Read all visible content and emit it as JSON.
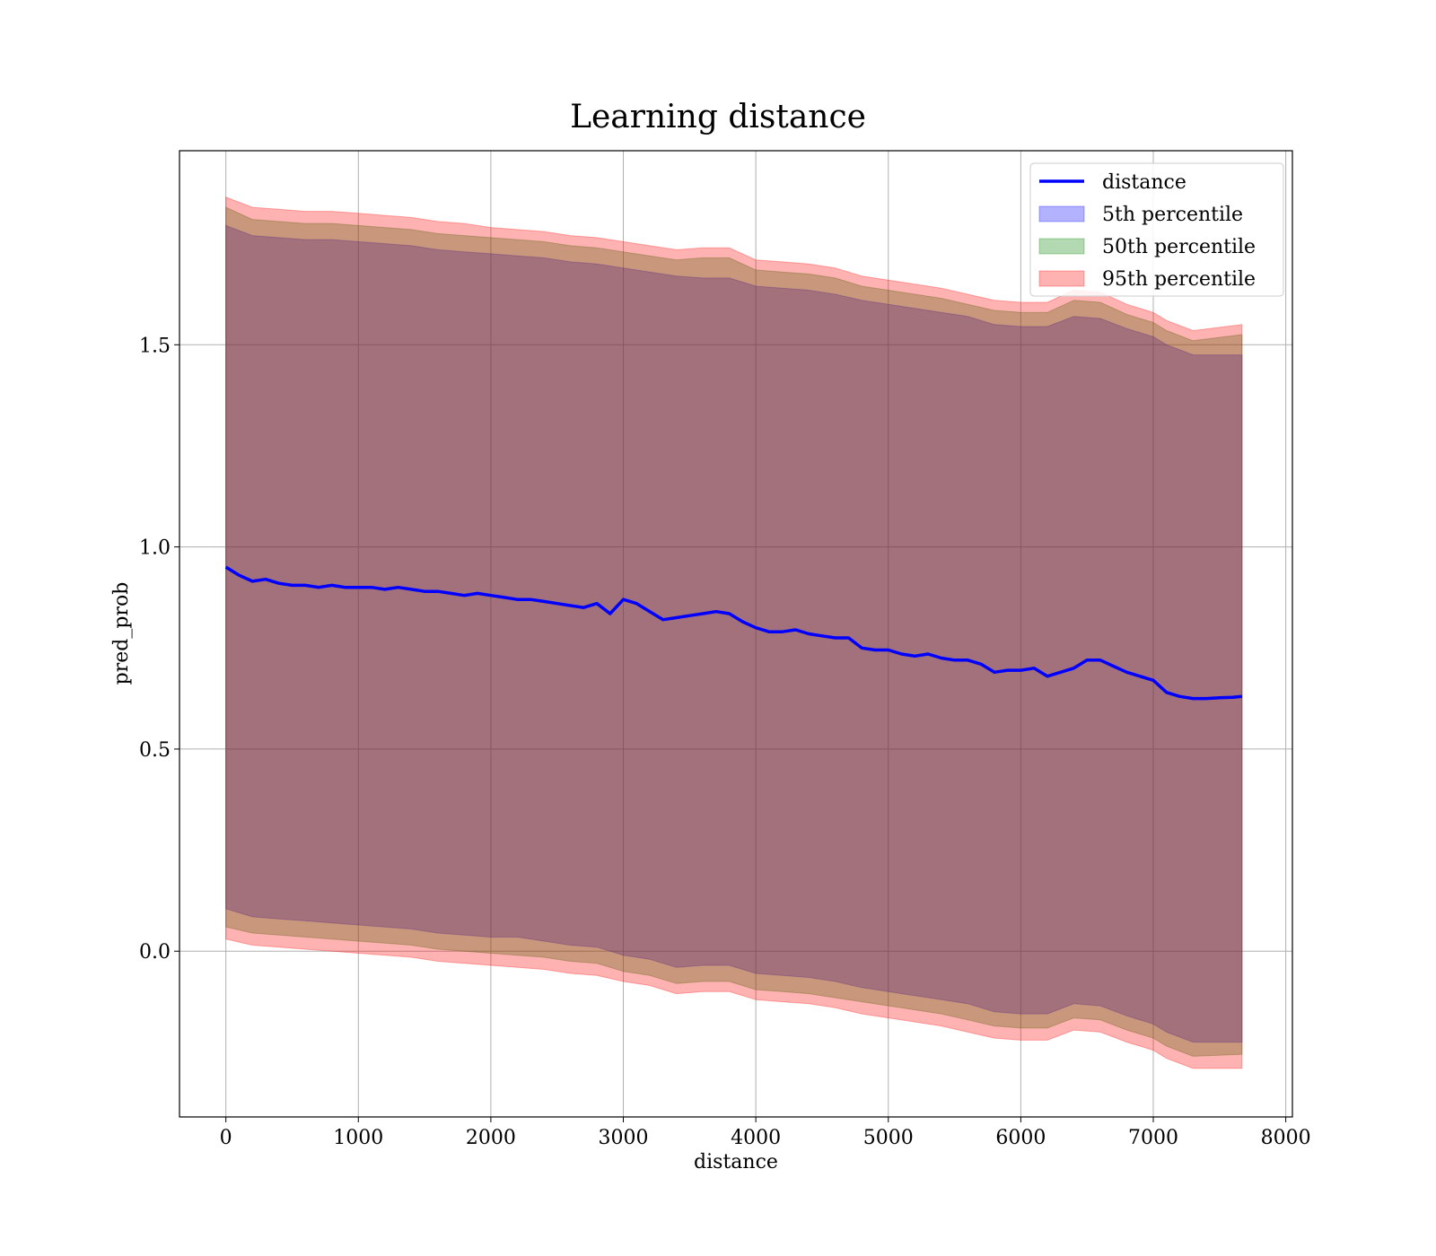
{
  "chart_data": {
    "type": "line",
    "title": "Learning distance",
    "xlabel": "distance",
    "ylabel": "pred_prob",
    "xlim": [
      -350,
      8050
    ],
    "ylim": [
      -0.41,
      1.98
    ],
    "xticks": [
      "0",
      "1000",
      "2000",
      "3000",
      "4000",
      "5000",
      "6000",
      "7000",
      "8000"
    ],
    "yticks": [
      "0.0",
      "0.5",
      "1.0",
      "1.5"
    ],
    "grid": true,
    "legend_position": "top-right",
    "colors": {
      "line": "#0000ff",
      "band_5th": "#0000ff",
      "band_50th": "#008000",
      "band_95th": "#ff0000"
    },
    "series": [
      {
        "name": "distance",
        "kind": "line",
        "x": [
          0,
          100,
          200,
          300,
          400,
          500,
          600,
          700,
          800,
          900,
          1000,
          1100,
          1200,
          1300,
          1400,
          1500,
          1600,
          1700,
          1800,
          1900,
          2000,
          2100,
          2200,
          2300,
          2400,
          2500,
          2600,
          2700,
          2800,
          2900,
          3000,
          3100,
          3200,
          3300,
          3400,
          3500,
          3600,
          3700,
          3800,
          3900,
          4000,
          4100,
          4200,
          4300,
          4400,
          4500,
          4600,
          4700,
          4800,
          4900,
          5000,
          5100,
          5200,
          5300,
          5400,
          5500,
          5600,
          5700,
          5800,
          5900,
          6000,
          6100,
          6200,
          6300,
          6400,
          6500,
          6600,
          6700,
          6800,
          6900,
          7000,
          7100,
          7200,
          7300,
          7400,
          7500,
          7600,
          7670
        ],
        "y": [
          0.95,
          0.93,
          0.915,
          0.92,
          0.91,
          0.905,
          0.905,
          0.9,
          0.905,
          0.9,
          0.9,
          0.9,
          0.895,
          0.9,
          0.895,
          0.89,
          0.89,
          0.885,
          0.88,
          0.885,
          0.88,
          0.875,
          0.87,
          0.87,
          0.865,
          0.86,
          0.855,
          0.85,
          0.86,
          0.835,
          0.87,
          0.86,
          0.84,
          0.82,
          0.825,
          0.83,
          0.835,
          0.84,
          0.835,
          0.815,
          0.8,
          0.79,
          0.79,
          0.795,
          0.785,
          0.78,
          0.775,
          0.775,
          0.75,
          0.745,
          0.745,
          0.735,
          0.73,
          0.735,
          0.725,
          0.72,
          0.72,
          0.71,
          0.69,
          0.695,
          0.695,
          0.7,
          0.68,
          0.69,
          0.7,
          0.72,
          0.72,
          0.705,
          0.69,
          0.68,
          0.67,
          0.64,
          0.63,
          0.625,
          0.625,
          0.627,
          0.628,
          0.63
        ]
      },
      {
        "name": "5th percentile",
        "kind": "band",
        "x": [
          0,
          200,
          400,
          600,
          800,
          1000,
          1200,
          1400,
          1600,
          1800,
          2000,
          2200,
          2400,
          2600,
          2800,
          3000,
          3200,
          3400,
          3600,
          3800,
          4000,
          4200,
          4400,
          4600,
          4800,
          5000,
          5200,
          5400,
          5600,
          5800,
          6000,
          6200,
          6400,
          6600,
          6800,
          7000,
          7100,
          7300,
          7670
        ],
        "upper": [
          1.795,
          1.77,
          1.765,
          1.76,
          1.76,
          1.755,
          1.75,
          1.745,
          1.735,
          1.73,
          1.725,
          1.72,
          1.715,
          1.705,
          1.7,
          1.69,
          1.68,
          1.67,
          1.665,
          1.665,
          1.645,
          1.64,
          1.635,
          1.625,
          1.61,
          1.6,
          1.59,
          1.58,
          1.57,
          1.55,
          1.545,
          1.545,
          1.57,
          1.565,
          1.54,
          1.52,
          1.5,
          1.475,
          1.475
        ],
        "lower": [
          0.105,
          0.085,
          0.08,
          0.075,
          0.07,
          0.065,
          0.06,
          0.055,
          0.045,
          0.04,
          0.035,
          0.035,
          0.025,
          0.015,
          0.01,
          -0.01,
          -0.02,
          -0.04,
          -0.035,
          -0.035,
          -0.055,
          -0.06,
          -0.065,
          -0.075,
          -0.09,
          -0.1,
          -0.11,
          -0.12,
          -0.13,
          -0.15,
          -0.155,
          -0.155,
          -0.13,
          -0.135,
          -0.16,
          -0.18,
          -0.2,
          -0.225,
          -0.225
        ]
      },
      {
        "name": "50th percentile",
        "kind": "band",
        "x": [
          0,
          200,
          400,
          600,
          800,
          1000,
          1200,
          1400,
          1600,
          1800,
          2000,
          2200,
          2400,
          2600,
          2800,
          3000,
          3200,
          3400,
          3600,
          3800,
          4000,
          4200,
          4400,
          4600,
          4800,
          5000,
          5200,
          5400,
          5600,
          5800,
          6000,
          6200,
          6400,
          6600,
          6800,
          7000,
          7100,
          7300,
          7670
        ],
        "upper": [
          1.84,
          1.81,
          1.805,
          1.8,
          1.8,
          1.795,
          1.79,
          1.785,
          1.775,
          1.77,
          1.765,
          1.76,
          1.755,
          1.745,
          1.74,
          1.73,
          1.72,
          1.71,
          1.715,
          1.715,
          1.685,
          1.68,
          1.675,
          1.665,
          1.645,
          1.635,
          1.625,
          1.615,
          1.6,
          1.585,
          1.58,
          1.58,
          1.61,
          1.605,
          1.575,
          1.555,
          1.535,
          1.51,
          1.525
        ],
        "lower": [
          0.06,
          0.045,
          0.04,
          0.035,
          0.03,
          0.025,
          0.02,
          0.015,
          0.005,
          0.0,
          -0.005,
          -0.01,
          -0.015,
          -0.025,
          -0.03,
          -0.05,
          -0.06,
          -0.08,
          -0.075,
          -0.075,
          -0.095,
          -0.1,
          -0.105,
          -0.115,
          -0.125,
          -0.135,
          -0.145,
          -0.155,
          -0.17,
          -0.185,
          -0.19,
          -0.19,
          -0.165,
          -0.17,
          -0.195,
          -0.215,
          -0.235,
          -0.26,
          -0.255
        ]
      },
      {
        "name": "95th percentile",
        "kind": "band",
        "x": [
          0,
          200,
          400,
          600,
          800,
          1000,
          1200,
          1400,
          1600,
          1800,
          2000,
          2200,
          2400,
          2600,
          2800,
          3000,
          3200,
          3400,
          3600,
          3800,
          4000,
          4200,
          4400,
          4600,
          4800,
          5000,
          5200,
          5400,
          5600,
          5800,
          6000,
          6200,
          6400,
          6600,
          6800,
          7000,
          7100,
          7300,
          7670
        ],
        "upper": [
          1.865,
          1.84,
          1.835,
          1.83,
          1.83,
          1.825,
          1.82,
          1.815,
          1.805,
          1.8,
          1.79,
          1.785,
          1.78,
          1.77,
          1.765,
          1.755,
          1.745,
          1.735,
          1.74,
          1.74,
          1.71,
          1.705,
          1.7,
          1.69,
          1.67,
          1.66,
          1.65,
          1.64,
          1.625,
          1.61,
          1.605,
          1.605,
          1.635,
          1.63,
          1.6,
          1.58,
          1.56,
          1.535,
          1.55
        ],
        "lower": [
          0.03,
          0.015,
          0.01,
          0.005,
          0.0,
          -0.005,
          -0.01,
          -0.015,
          -0.025,
          -0.03,
          -0.035,
          -0.04,
          -0.045,
          -0.055,
          -0.06,
          -0.075,
          -0.085,
          -0.105,
          -0.1,
          -0.1,
          -0.12,
          -0.125,
          -0.13,
          -0.14,
          -0.155,
          -0.165,
          -0.175,
          -0.185,
          -0.2,
          -0.215,
          -0.22,
          -0.22,
          -0.195,
          -0.2,
          -0.225,
          -0.245,
          -0.265,
          -0.29,
          -0.29
        ]
      }
    ]
  }
}
